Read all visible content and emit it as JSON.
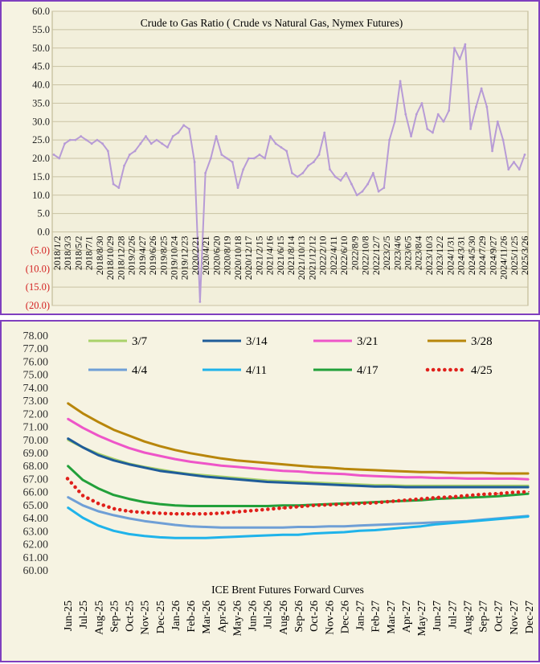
{
  "chart_data": [
    {
      "type": "line",
      "title": "Crude to Gas Ratio ( Crude vs Natural Gas, Nymex Futures)",
      "xlabel": "",
      "ylabel": "",
      "ylim": [
        -20,
        60
      ],
      "y_ticks": [
        "60.0",
        "55.0",
        "50.0",
        "45.0",
        "40.0",
        "35.0",
        "30.0",
        "25.0",
        "20.0",
        "15.0",
        "10.0",
        "5.0",
        "0.0",
        "(5.0)",
        "(10.0)",
        "(15.0)",
        "(20.0)"
      ],
      "x_tick_labels": [
        "2018/1/2",
        "2018/3/3",
        "2018/5/2",
        "2018/7/1",
        "2018/8/30",
        "2018/10/29",
        "2018/12/28",
        "2019/2/26",
        "2019/4/27",
        "2019/6/26",
        "2019/8/25",
        "2019/10/24",
        "2019/12/23",
        "2020/2/21",
        "2020/4/21",
        "2020/6/20",
        "2020/8/19",
        "2020/10/18",
        "2020/12/17",
        "2021/2/15",
        "2021/4/16",
        "2021/6/15",
        "2021/8/14",
        "2021/10/13",
        "2021/12/12",
        "2022/2/10",
        "2022/4/11",
        "2022/6/10",
        "2022/8/9",
        "2022/10/8",
        "2022/12/7",
        "2023/2/5",
        "2023/4/6",
        "2023/6/5",
        "2023/8/4",
        "2023/10/3",
        "2023/12/2",
        "2024/1/31",
        "2024/3/31",
        "2024/5/30",
        "2024/7/29",
        "2024/9/27",
        "2024/11/26",
        "2025/1/25",
        "2025/3/26"
      ],
      "series": [
        {
          "color": "#b79bd6",
          "x": [
            "2018-01",
            "2018-02",
            "2018-03",
            "2018-04",
            "2018-05",
            "2018-06",
            "2018-07",
            "2018-08",
            "2018-09",
            "2018-10",
            "2018-11",
            "2018-12",
            "2019-01",
            "2019-02",
            "2019-03",
            "2019-04",
            "2019-05",
            "2019-06",
            "2019-07",
            "2019-08",
            "2019-09",
            "2019-10",
            "2019-11",
            "2019-12",
            "2020-01",
            "2020-02",
            "2020-03",
            "2020-04",
            "2020-05",
            "2020-06",
            "2020-07",
            "2020-08",
            "2020-09",
            "2020-10",
            "2020-11",
            "2020-12",
            "2021-01",
            "2021-02",
            "2021-03",
            "2021-04",
            "2021-05",
            "2021-06",
            "2021-07",
            "2021-08",
            "2021-09",
            "2021-10",
            "2021-11",
            "2021-12",
            "2022-01",
            "2022-02",
            "2022-03",
            "2022-04",
            "2022-05",
            "2022-06",
            "2022-07",
            "2022-08",
            "2022-09",
            "2022-10",
            "2022-11",
            "2022-12",
            "2023-01",
            "2023-02",
            "2023-03",
            "2023-04",
            "2023-05",
            "2023-06",
            "2023-07",
            "2023-08",
            "2023-09",
            "2023-10",
            "2023-11",
            "2023-12",
            "2024-01",
            "2024-02",
            "2024-03",
            "2024-04",
            "2024-05",
            "2024-06",
            "2024-07",
            "2024-08",
            "2024-09",
            "2024-10",
            "2024-11",
            "2024-12",
            "2025-01",
            "2025-02",
            "2025-03",
            "2025-04"
          ],
          "values": [
            21,
            20,
            24,
            25,
            25,
            26,
            25,
            24,
            25,
            24,
            22,
            13,
            12,
            18,
            21,
            22,
            24,
            26,
            24,
            25,
            24,
            23,
            26,
            27,
            29,
            28,
            19,
            -19,
            16,
            20,
            26,
            21,
            20,
            19,
            12,
            17,
            20,
            20,
            21,
            20,
            26,
            24,
            23,
            22,
            16,
            15,
            16,
            18,
            19,
            21,
            27,
            17,
            15,
            14,
            16,
            13,
            10,
            11,
            13,
            16,
            11,
            12,
            25,
            30,
            41,
            32,
            26,
            32,
            35,
            28,
            27,
            32,
            30,
            33,
            50,
            47,
            51,
            28,
            34,
            39,
            34,
            22,
            30,
            25,
            17,
            19,
            17,
            21
          ]
        }
      ]
    },
    {
      "type": "line",
      "title": "ICE Brent Futures Forward Curves",
      "xlabel": "",
      "ylabel": "",
      "ylim": [
        60,
        78
      ],
      "y_ticks": [
        "78.00",
        "77.00",
        "76.00",
        "75.00",
        "74.00",
        "73.00",
        "72.00",
        "71.00",
        "70.00",
        "69.00",
        "68.00",
        "67.00",
        "66.00",
        "65.00",
        "64.00",
        "63.00",
        "62.00",
        "61.00",
        "60.00"
      ],
      "categories": [
        "Jun-25",
        "Jul-25",
        "Aug-25",
        "Sep-25",
        "Oct-25",
        "Nov-25",
        "Dec-25",
        "Jan-26",
        "Feb-26",
        "Mar-26",
        "Apr-26",
        "May-26",
        "Jun-26",
        "Jul-26",
        "Aug-26",
        "Sep-26",
        "Oct-26",
        "Nov-26",
        "Dec-26",
        "Jan-27",
        "Feb-27",
        "Mar-27",
        "Apr-27",
        "May-27",
        "Jun-27",
        "Jul-27",
        "Aug-27",
        "Sep-27",
        "Oct-27",
        "Nov-27",
        "Dec-27"
      ],
      "legend_position": "top",
      "series": [
        {
          "name": "3/7",
          "color": "#a9d26a",
          "dash": "solid",
          "values": [
            70.0,
            69.4,
            68.9,
            68.5,
            68.15,
            67.9,
            67.7,
            67.5,
            67.35,
            67.25,
            67.15,
            67.05,
            66.95,
            66.85,
            66.8,
            66.75,
            66.7,
            66.65,
            66.6,
            66.55,
            66.5,
            66.5,
            66.45,
            66.45,
            66.45,
            66.45,
            66.45,
            66.45,
            66.45,
            66.45,
            66.45
          ]
        },
        {
          "name": "3/14",
          "color": "#1f5c99",
          "dash": "solid",
          "values": [
            70.1,
            69.4,
            68.8,
            68.4,
            68.1,
            67.85,
            67.6,
            67.45,
            67.3,
            67.15,
            67.05,
            66.95,
            66.85,
            66.75,
            66.7,
            66.65,
            66.6,
            66.55,
            66.5,
            66.45,
            66.4,
            66.4,
            66.35,
            66.35,
            66.35,
            66.35,
            66.35,
            66.35,
            66.35,
            66.35,
            66.35
          ]
        },
        {
          "name": "3/21",
          "color": "#ee55c8",
          "dash": "solid",
          "values": [
            71.6,
            70.9,
            70.3,
            69.8,
            69.35,
            69.0,
            68.75,
            68.5,
            68.3,
            68.15,
            68.0,
            67.9,
            67.8,
            67.7,
            67.6,
            67.55,
            67.45,
            67.4,
            67.35,
            67.25,
            67.2,
            67.15,
            67.1,
            67.1,
            67.05,
            67.05,
            67.0,
            67.0,
            67.0,
            67.0,
            66.95
          ]
        },
        {
          "name": "3/28",
          "color": "#b8860b",
          "dash": "solid",
          "values": [
            72.8,
            72.0,
            71.35,
            70.75,
            70.3,
            69.85,
            69.5,
            69.2,
            68.95,
            68.75,
            68.55,
            68.4,
            68.3,
            68.2,
            68.1,
            68.0,
            67.9,
            67.85,
            67.75,
            67.7,
            67.65,
            67.6,
            67.55,
            67.5,
            67.5,
            67.45,
            67.45,
            67.45,
            67.4,
            67.4,
            67.4
          ]
        },
        {
          "name": "4/4",
          "color": "#6f9fd6",
          "dash": "solid",
          "values": [
            65.6,
            64.95,
            64.5,
            64.2,
            63.95,
            63.75,
            63.6,
            63.45,
            63.35,
            63.3,
            63.25,
            63.25,
            63.25,
            63.25,
            63.25,
            63.3,
            63.3,
            63.35,
            63.35,
            63.4,
            63.45,
            63.5,
            63.55,
            63.6,
            63.65,
            63.7,
            63.75,
            63.85,
            63.95,
            64.05,
            64.15
          ]
        },
        {
          "name": "4/11",
          "color": "#1fb3ea",
          "dash": "solid",
          "values": [
            64.8,
            64.0,
            63.4,
            63.0,
            62.75,
            62.6,
            62.5,
            62.45,
            62.45,
            62.45,
            62.5,
            62.55,
            62.6,
            62.65,
            62.7,
            62.7,
            62.8,
            62.85,
            62.9,
            63.0,
            63.05,
            63.15,
            63.25,
            63.35,
            63.5,
            63.6,
            63.7,
            63.8,
            63.9,
            64.0,
            64.1
          ]
        },
        {
          "name": "4/17",
          "color": "#22a03a",
          "dash": "solid",
          "values": [
            68.0,
            66.9,
            66.25,
            65.75,
            65.45,
            65.2,
            65.05,
            64.95,
            64.9,
            64.9,
            64.9,
            64.9,
            64.9,
            64.9,
            64.95,
            64.95,
            65.0,
            65.05,
            65.1,
            65.15,
            65.2,
            65.25,
            65.3,
            65.35,
            65.45,
            65.5,
            65.55,
            65.6,
            65.65,
            65.75,
            65.85
          ]
        },
        {
          "name": "4/25",
          "color": "#e0201b",
          "dash": "dotted",
          "values": [
            67.0,
            65.7,
            65.1,
            64.7,
            64.5,
            64.4,
            64.35,
            64.3,
            64.3,
            64.3,
            64.35,
            64.45,
            64.55,
            64.65,
            64.75,
            64.85,
            64.95,
            65.0,
            65.05,
            65.1,
            65.15,
            65.25,
            65.35,
            65.45,
            65.55,
            65.6,
            65.7,
            65.8,
            65.85,
            65.95,
            66.0
          ]
        }
      ]
    }
  ]
}
